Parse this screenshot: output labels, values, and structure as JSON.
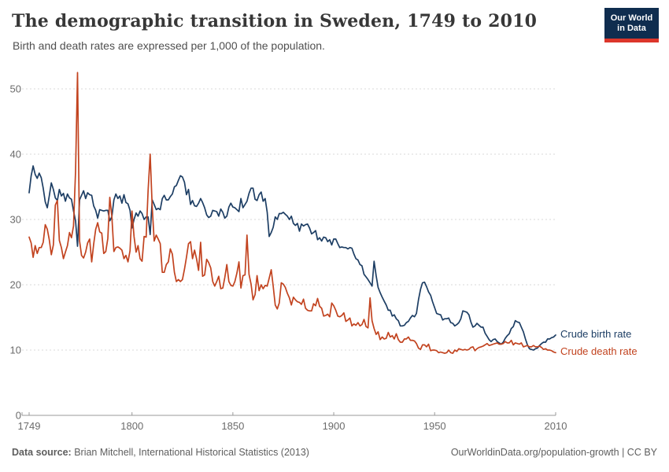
{
  "header": {
    "title": "The demographic transition in Sweden, 1749 to 2010",
    "subtitle": "Birth and death rates are expressed per 1,000 of the population.",
    "logo": {
      "line1": "Our World",
      "line2": "in Data",
      "bg_color": "#0f2d4f",
      "bar_color": "#dc362b"
    }
  },
  "footer": {
    "source_label": "Data source:",
    "source_text": " Brian Mitchell, International Historical Statistics (2013)",
    "link": "OurWorldinData.org/population-growth",
    "license": " | CC BY"
  },
  "chart_data": {
    "type": "line",
    "title": "The demographic transition in Sweden, 1749 to 2010",
    "subtitle": "Birth and death rates are expressed per 1,000 of the population.",
    "xlabel": "",
    "ylabel": "",
    "x_start": 1749,
    "x_end": 2010,
    "x_step": 1,
    "x_ticks": [
      1749,
      1800,
      1850,
      1900,
      1950,
      2010
    ],
    "y_ticks": [
      0,
      10,
      20,
      30,
      40,
      50
    ],
    "ylim": [
      0,
      53
    ],
    "grid": "horizontal-dashed",
    "legend_position": "right-of-line-ends",
    "axis_text_color": "#6b6b6b",
    "grid_color": "#d9d9d9",
    "axis_color": "#999999",
    "series": [
      {
        "id": "crude-birth-rate",
        "name": "Crude birth rate",
        "color": "#1d3e64",
        "values": [
          34.1,
          36.7,
          38.2,
          36.9,
          36.3,
          37.1,
          36.4,
          34.8,
          32.7,
          31.8,
          33.6,
          35.6,
          34.6,
          33.3,
          32.9,
          34.6,
          33.6,
          34.0,
          32.8,
          33.9,
          33.3,
          33.1,
          31.3,
          29.8,
          25.9,
          33.0,
          33.7,
          34.4,
          33.2,
          34.1,
          33.8,
          33.7,
          32.1,
          31.4,
          30.2,
          31.5,
          31.4,
          31.3,
          31.4,
          31.4,
          29.8,
          30.4,
          33.0,
          33.9,
          33.2,
          33.6,
          32.5,
          33.8,
          32.6,
          32.4,
          31.4,
          28.7,
          30.0,
          31.0,
          30.5,
          31.3,
          30.9,
          30.0,
          30.4,
          30.4,
          27.7,
          33.0,
          32.3,
          31.5,
          31.7,
          31.5,
          33.2,
          33.7,
          33.0,
          33.0,
          33.5,
          33.9,
          35.0,
          35.2,
          36.0,
          36.7,
          36.5,
          35.7,
          33.8,
          34.6,
          32.3,
          32.9,
          32.1,
          32.0,
          32.5,
          33.2,
          32.6,
          31.8,
          30.7,
          30.3,
          30.5,
          31.4,
          31.3,
          31.2,
          30.5,
          31.6,
          31.1,
          30.2,
          30.5,
          31.9,
          32.5,
          31.9,
          31.8,
          31.5,
          31.2,
          33.2,
          31.8,
          32.3,
          32.8,
          34.0,
          34.8,
          34.8,
          33.1,
          32.9,
          33.8,
          34.2,
          32.8,
          33.2,
          31.1,
          27.4,
          28.0,
          28.8,
          30.4,
          30.0,
          30.9,
          30.9,
          31.1,
          30.8,
          30.5,
          30.0,
          30.5,
          29.4,
          29.1,
          29.4,
          28.2,
          29.3,
          29.0,
          29.2,
          29.3,
          28.7,
          27.8,
          28.0,
          28.3,
          26.9,
          27.2,
          26.7,
          27.3,
          27.2,
          26.6,
          26.9,
          26.1,
          27.0,
          27.0,
          26.3,
          25.7,
          25.8,
          25.7,
          25.7,
          25.5,
          25.7,
          25.6,
          24.7,
          24.0,
          23.8,
          23.1,
          22.9,
          21.6,
          21.2,
          20.8,
          20.3,
          19.8,
          23.6,
          21.4,
          19.6,
          18.8,
          18.1,
          17.5,
          16.9,
          16.1,
          16.1,
          15.2,
          15.4,
          14.8,
          14.5,
          13.7,
          13.7,
          13.8,
          14.2,
          14.4,
          14.9,
          15.3,
          15.1,
          15.6,
          17.7,
          19.3,
          20.3,
          20.4,
          19.7,
          18.9,
          18.4,
          17.4,
          16.5,
          15.6,
          15.5,
          15.4,
          14.6,
          14.8,
          14.8,
          14.9,
          14.2,
          14.1,
          13.7,
          13.9,
          14.2,
          14.8,
          16.0,
          15.9,
          15.8,
          15.4,
          14.3,
          13.5,
          13.7,
          14.1,
          13.8,
          13.5,
          13.5,
          12.6,
          12.1,
          11.6,
          11.3,
          11.6,
          11.7,
          11.3,
          11.1,
          10.9,
          11.2,
          11.8,
          12.2,
          12.5,
          13.3,
          13.6,
          14.5,
          14.3,
          14.2,
          13.5,
          12.8,
          11.7,
          10.8,
          10.2,
          10.1,
          10.0,
          10.2,
          10.3,
          10.7,
          11.0,
          11.2,
          11.2,
          11.7,
          11.7,
          11.9,
          12.0,
          12.3
        ]
      },
      {
        "id": "crude-death-rate",
        "name": "Crude death rate",
        "color": "#c2431f",
        "values": [
          27.3,
          26.4,
          24.2,
          26.0,
          24.8,
          25.7,
          25.7,
          26.5,
          29.2,
          28.5,
          26.9,
          24.6,
          26.1,
          32.2,
          32.9,
          26.8,
          25.7,
          24.0,
          25.0,
          26.0,
          28.0,
          27.2,
          29.0,
          37.4,
          52.5,
          26.7,
          24.5,
          24.1,
          25.0,
          26.4,
          27.0,
          23.5,
          26.2,
          28.5,
          29.5,
          28.1,
          27.9,
          24.8,
          25.1,
          27.1,
          33.4,
          30.5,
          25.1,
          25.7,
          25.8,
          25.6,
          25.3,
          24.0,
          24.5,
          23.5,
          25.2,
          31.3,
          27.4,
          25.0,
          26.0,
          24.0,
          23.6,
          27.4,
          27.3,
          34.5,
          40.0,
          31.9,
          26.7,
          27.6,
          27.0,
          26.3,
          21.9,
          21.9,
          23.1,
          23.5,
          25.5,
          24.7,
          21.9,
          20.5,
          20.8,
          20.5,
          20.8,
          22.4,
          24.2,
          26.3,
          26.6,
          24.0,
          25.3,
          24.0,
          22.2,
          26.5,
          21.3,
          21.5,
          23.9,
          23.4,
          22.6,
          20.5,
          19.8,
          20.5,
          21.3,
          19.4,
          19.5,
          21.1,
          23.1,
          20.5,
          19.9,
          19.8,
          20.5,
          21.8,
          23.5,
          19.5,
          21.4,
          21.5,
          27.6,
          21.6,
          20.1,
          17.7,
          18.5,
          21.4,
          19.1,
          20.0,
          19.4,
          19.9,
          19.8,
          21.0,
          22.3,
          19.8,
          16.9,
          16.3,
          17.2,
          20.3,
          20.1,
          19.6,
          18.7,
          18.0,
          16.9,
          18.1,
          17.7,
          17.4,
          17.3,
          17.0,
          17.8,
          16.4,
          16.1,
          16.0,
          16.0,
          17.1,
          16.8,
          17.9,
          16.7,
          16.4,
          15.2,
          15.3,
          15.5,
          15.1,
          17.2,
          16.8,
          16.1,
          15.2,
          15.1,
          15.3,
          15.7,
          14.4,
          14.6,
          14.9,
          13.7,
          14.0,
          13.8,
          14.2,
          13.7,
          13.9,
          14.7,
          13.6,
          13.4,
          18.0,
          14.5,
          13.3,
          12.4,
          12.8,
          11.6,
          12.0,
          11.7,
          11.8,
          12.7,
          12.0,
          12.2,
          11.7,
          12.5,
          11.6,
          11.2,
          11.2,
          11.7,
          11.7,
          12.0,
          11.5,
          11.5,
          11.4,
          11.0,
          10.3,
          10.1,
          10.8,
          10.8,
          10.5,
          10.9,
          9.9,
          10.0,
          10.0,
          9.9,
          9.6,
          9.7,
          9.6,
          9.5,
          9.6,
          10.0,
          9.6,
          9.5,
          10.0,
          9.8,
          10.2,
          10.1,
          10.0,
          10.1,
          10.0,
          10.1,
          10.4,
          10.5,
          9.9,
          10.2,
          10.4,
          10.5,
          10.6,
          10.8,
          11.0,
          10.7,
          10.8,
          10.9,
          11.0,
          11.1,
          10.9,
          10.9,
          11.0,
          11.3,
          11.1,
          11.1,
          11.5,
          10.8,
          11.1,
          11.0,
          10.9,
          11.1,
          10.5,
          10.6,
          10.7,
          10.5,
          10.5,
          10.7,
          10.5,
          10.5,
          10.6,
          10.4,
          10.1,
          10.2,
          10.0,
          10.0,
          9.9,
          9.7,
          9.6
        ]
      }
    ]
  }
}
